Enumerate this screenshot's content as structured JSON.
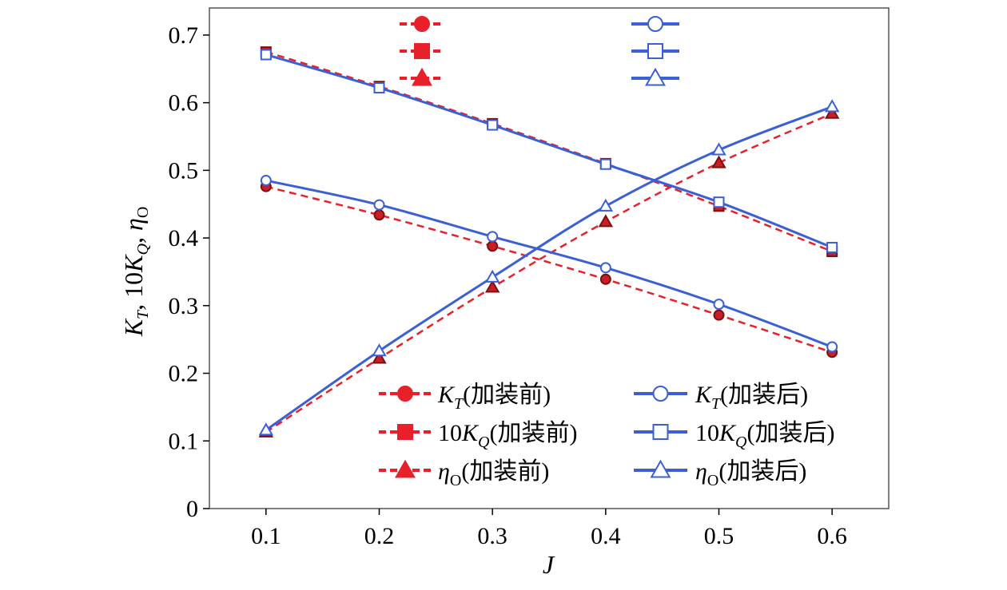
{
  "chart_data": {
    "type": "line",
    "title": "",
    "xlabel": "J",
    "ylabel": "K_T, 10K_Q, η_O",
    "ylabel_parts": {
      "a": "K",
      "a_sub": "T",
      "b": ", 10",
      "c": "K",
      "c_sub": "Q",
      "d": ", ",
      "e": "η",
      "e_sub": "O"
    },
    "x": [
      0.1,
      0.2,
      0.3,
      0.4,
      0.5,
      0.6
    ],
    "xlim": [
      0.05,
      0.65
    ],
    "ylim": [
      0,
      0.74
    ],
    "x_ticks": [
      "0.1",
      "0.2",
      "0.3",
      "0.4",
      "0.5",
      "0.6"
    ],
    "x_tick_values": [
      0.1,
      0.2,
      0.3,
      0.4,
      0.5,
      0.6
    ],
    "y_ticks": [
      "0",
      "0.1",
      "0.2",
      "0.3",
      "0.4",
      "0.5",
      "0.6",
      "0.7"
    ],
    "y_tick_values": [
      0,
      0.1,
      0.2,
      0.3,
      0.4,
      0.5,
      0.6,
      0.7
    ],
    "grid": false,
    "legend_position": "lower-center",
    "series": [
      {
        "name": "KT-before",
        "label_main": "K",
        "label_sub": "T",
        "label_rest": "(加装前)",
        "marker": "circle-filled",
        "color": "#e8202a",
        "marker_fill": "#c81e24",
        "dashed": true,
        "values": [
          0.476,
          0.434,
          0.388,
          0.339,
          0.286,
          0.231
        ]
      },
      {
        "name": "10KQ-before",
        "label_main": "10K",
        "label_sub": "Q",
        "label_rest": "(加装前)",
        "marker": "square-filled",
        "color": "#e8202a",
        "marker_fill": "#c81e24",
        "dashed": true,
        "values": [
          0.675,
          0.624,
          0.569,
          0.51,
          0.447,
          0.38
        ]
      },
      {
        "name": "etaO-before",
        "label_main": "η",
        "label_sub": "O",
        "label_rest": "(加装前)",
        "marker": "triangle-filled",
        "color": "#e8202a",
        "marker_fill": "#c81e24",
        "dashed": true,
        "values": [
          0.113,
          0.222,
          0.327,
          0.424,
          0.511,
          0.584
        ]
      },
      {
        "name": "KT-after",
        "label_main": "K",
        "label_sub": "T",
        "label_rest": "(加装后)",
        "marker": "circle-open",
        "color": "#3a5fd6",
        "marker_fill": "#ffffff",
        "dashed": false,
        "values": [
          0.485,
          0.449,
          0.402,
          0.356,
          0.302,
          0.239
        ]
      },
      {
        "name": "10KQ-after",
        "label_main": "10K",
        "label_sub": "Q",
        "label_rest": "(加装后)",
        "marker": "square-open",
        "color": "#3a5fd6",
        "marker_fill": "#ffffff",
        "dashed": false,
        "values": [
          0.671,
          0.622,
          0.567,
          0.509,
          0.453,
          0.386
        ]
      },
      {
        "name": "etaO-after",
        "label_main": "η",
        "label_sub": "O",
        "label_rest": "(加装后)",
        "marker": "triangle-open",
        "color": "#3a5fd6",
        "marker_fill": "#ffffff",
        "dashed": false,
        "values": [
          0.116,
          0.233,
          0.342,
          0.447,
          0.53,
          0.594
        ]
      }
    ]
  }
}
